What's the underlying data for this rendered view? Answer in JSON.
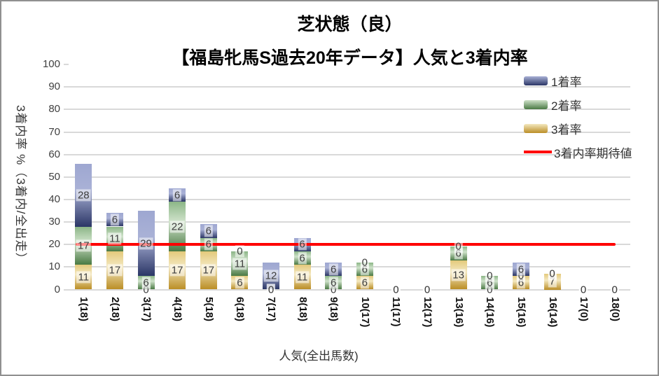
{
  "title": {
    "line1": "芝状態（良）",
    "line2": "【福島牝馬S過去20年データ】人気と3着内率"
  },
  "colors": {
    "bar_blue": {
      "top": "#9ea7d1",
      "light": "#a9b1d6",
      "dark": "#2b3666"
    },
    "bar_green": {
      "top": "#8cb687",
      "light": "#cfe2ca",
      "dark": "#4a7a44"
    },
    "bar_gold": {
      "top": "#e3c97b",
      "light": "#f4e8c0",
      "dark": "#bb8e26"
    },
    "expected_line": "#ff0000",
    "gridline": "#d9d9d9",
    "text_dark": "#404040"
  },
  "legend": {
    "items": [
      {
        "label": "1着率",
        "swatch": "blue"
      },
      {
        "label": "2着率",
        "swatch": "green"
      },
      {
        "label": "3着率",
        "swatch": "gold"
      },
      {
        "label": "3着内率期待値",
        "swatch": "line"
      }
    ]
  },
  "chart_data": {
    "type": "bar",
    "stacked": true,
    "title": "芝状態（良）【福島牝馬S過去20年データ】人気と3着内率",
    "xlabel": "人気(全出馬数)",
    "ylabel": "3着内率 %（3着内/全出走）",
    "ylim": [
      0,
      100
    ],
    "ytick_step": 10,
    "grid": true,
    "legend_position": "top-right",
    "categories": [
      "1(18)",
      "2(18)",
      "3(17)",
      "4(18)",
      "5(18)",
      "6(18)",
      "7(17)",
      "8(18)",
      "9(18)",
      "10(17)",
      "11(17)",
      "12(17)",
      "13(16)",
      "14(16)",
      "15(16)",
      "16(14)",
      "17(0)",
      "18(0)"
    ],
    "series": [
      {
        "name": "3着率",
        "color": "gold",
        "values": [
          11,
          17,
          0,
          17,
          17,
          6,
          0,
          11,
          0,
          6,
          0,
          0,
          13,
          0,
          6,
          7,
          0,
          0
        ]
      },
      {
        "name": "2着率",
        "color": "green",
        "values": [
          17,
          11,
          6,
          22,
          6,
          11,
          0,
          6,
          6,
          6,
          0,
          0,
          6,
          6,
          0,
          0,
          0,
          0
        ]
      },
      {
        "name": "1着率",
        "color": "blue",
        "values": [
          28,
          6,
          29,
          6,
          6,
          0,
          12,
          6,
          6,
          0,
          0,
          0,
          0,
          0,
          6,
          0,
          0,
          0
        ]
      }
    ],
    "expected_line": {
      "name": "3着内率期待値",
      "value": 20,
      "color": "#ff0000"
    }
  }
}
